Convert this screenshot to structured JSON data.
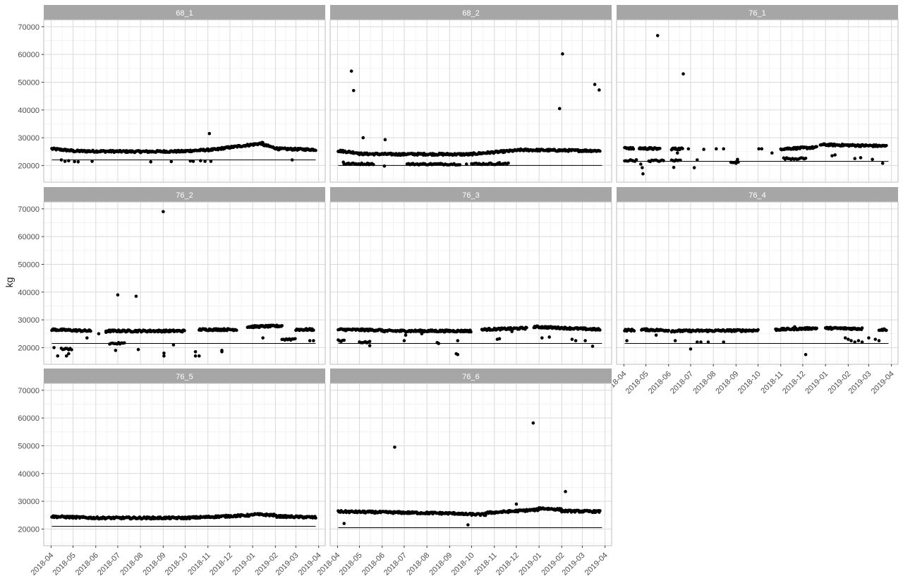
{
  "chart_data": {
    "type": "scatter",
    "ylabel": "kg",
    "xlabel": "",
    "y_ticks": [
      20000,
      30000,
      40000,
      50000,
      60000,
      70000
    ],
    "y_tick_labels": [
      "20000",
      "30000",
      "40000",
      "50000",
      "60000",
      "70000"
    ],
    "ylim": [
      14000,
      72500
    ],
    "x_ticks": [
      "2018-04-01",
      "2018-05-01",
      "2018-06-01",
      "2018-07-01",
      "2018-08-01",
      "2018-09-01",
      "2018-10-01",
      "2018-11-01",
      "2018-12-01",
      "2019-01-01",
      "2019-02-01",
      "2019-03-01",
      "2019-04-01"
    ],
    "x_tick_labels": [
      "2018-04",
      "2018-05",
      "2018-06",
      "2018-07",
      "2018-08",
      "2018-09",
      "2018-10",
      "2018-11",
      "2018-12",
      "2019-01",
      "2019-02",
      "2019-03",
      "2019-04"
    ],
    "xlim": [
      "2018-03-22",
      "2019-04-10"
    ],
    "grid": true,
    "colors": {
      "panel_strip": "#a6a6a6",
      "strip_text": "#ffffff",
      "grid": "#d9d9d9",
      "point": "#000000",
      "reference_line": "#000000",
      "axis_text": "#4d4d4d"
    },
    "panels": [
      {
        "label": "68_1",
        "reference_line": 22000,
        "bands": [
          {
            "from": "2018-04-02",
            "to": "2018-05-01",
            "start": 26000,
            "end": 25300
          },
          {
            "from": "2018-05-01",
            "to": "2018-08-01",
            "start": 25200,
            "end": 25000
          },
          {
            "from": "2018-08-01",
            "to": "2018-10-01",
            "start": 25000,
            "end": 25100
          },
          {
            "from": "2018-10-01",
            "to": "2018-11-15",
            "start": 25200,
            "end": 25800
          },
          {
            "from": "2018-11-15",
            "to": "2019-01-15",
            "start": 26000,
            "end": 28000
          },
          {
            "from": "2019-01-15",
            "to": "2019-02-05",
            "start": 27500,
            "end": 26000
          },
          {
            "from": "2019-02-05",
            "to": "2019-03-28",
            "start": 26000,
            "end": 25700
          }
        ],
        "points": [
          [
            "2018-04-15",
            22000
          ],
          [
            "2018-04-20",
            21500
          ],
          [
            "2018-04-25",
            21700
          ],
          [
            "2018-05-03",
            21400
          ],
          [
            "2018-05-08",
            21300
          ],
          [
            "2018-05-27",
            21500
          ],
          [
            "2018-08-15",
            21300
          ],
          [
            "2018-09-12",
            21400
          ],
          [
            "2018-10-08",
            21600
          ],
          [
            "2018-10-12",
            21500
          ],
          [
            "2018-10-22",
            21700
          ],
          [
            "2018-10-28",
            21500
          ],
          [
            "2018-11-05",
            21500
          ],
          [
            "2018-11-03",
            31500
          ],
          [
            "2019-02-24",
            22000
          ]
        ]
      },
      {
        "label": "68_2",
        "reference_line": 20000,
        "bands": [
          {
            "from": "2018-04-02",
            "to": "2018-04-30",
            "start": 25300,
            "end": 24500
          },
          {
            "from": "2018-04-30",
            "to": "2018-07-01",
            "start": 24200,
            "end": 24000
          },
          {
            "from": "2018-07-01",
            "to": "2018-09-30",
            "start": 24100,
            "end": 24000
          },
          {
            "from": "2018-09-30",
            "to": "2018-12-05",
            "start": 24100,
            "end": 25500
          },
          {
            "from": "2018-12-05",
            "to": "2019-03-25",
            "start": 25600,
            "end": 25300
          }
        ],
        "lower_bands": [
          {
            "from": "2018-04-10",
            "to": "2018-05-20",
            "value": 20600
          },
          {
            "from": "2018-07-05",
            "to": "2018-09-15",
            "value": 20500
          },
          {
            "from": "2018-10-01",
            "to": "2018-11-20",
            "value": 20600
          }
        ],
        "points": [
          [
            "2018-04-20",
            54000
          ],
          [
            "2018-04-23",
            47000
          ],
          [
            "2018-05-06",
            30000
          ],
          [
            "2018-06-05",
            29300
          ],
          [
            "2018-06-04",
            19800
          ],
          [
            "2018-04-09",
            21200
          ],
          [
            "2018-05-15",
            20600
          ],
          [
            "2019-01-29",
            40500
          ],
          [
            "2019-02-02",
            60200
          ],
          [
            "2019-03-18",
            49200
          ],
          [
            "2019-03-24",
            47200
          ],
          [
            "2018-09-24",
            20500
          ],
          [
            "2018-11-08",
            21000
          ]
        ]
      },
      {
        "label": "76_1",
        "reference_line": 21500,
        "bands": [
          {
            "from": "2018-04-02",
            "to": "2018-04-14",
            "start": 26500,
            "end": 26000
          },
          {
            "from": "2018-04-22",
            "to": "2018-05-20",
            "start": 26200,
            "end": 26000
          },
          {
            "from": "2018-06-05",
            "to": "2018-06-20",
            "start": 26000,
            "end": 26000
          },
          {
            "from": "2018-11-01",
            "to": "2018-12-20",
            "start": 26000,
            "end": 26500
          },
          {
            "from": "2018-12-25",
            "to": "2019-03-25",
            "start": 27500,
            "end": 27000
          }
        ],
        "lower_bands": [
          {
            "from": "2018-04-02",
            "to": "2018-04-18",
            "value": 21800
          },
          {
            "from": "2018-05-05",
            "to": "2018-05-25",
            "value": 21700
          },
          {
            "from": "2018-06-05",
            "to": "2018-06-18",
            "value": 21800
          },
          {
            "from": "2018-08-25",
            "to": "2018-09-05",
            "value": 21300
          },
          {
            "from": "2018-11-05",
            "to": "2018-12-05",
            "value": 22500
          }
        ],
        "points": [
          [
            "2018-05-17",
            66800
          ],
          [
            "2018-06-21",
            53000
          ],
          [
            "2018-04-24",
            20500
          ],
          [
            "2018-04-26",
            19200
          ],
          [
            "2018-04-27",
            17000
          ],
          [
            "2018-06-08",
            19300
          ],
          [
            "2018-06-13",
            24500
          ],
          [
            "2018-07-06",
            19200
          ],
          [
            "2018-07-10",
            22000
          ],
          [
            "2018-08-05",
            26000
          ],
          [
            "2018-08-15",
            26000
          ],
          [
            "2018-09-01",
            20800
          ],
          [
            "2018-09-03",
            22200
          ],
          [
            "2018-10-02",
            26000
          ],
          [
            "2018-10-06",
            26000
          ],
          [
            "2018-10-20",
            24500
          ],
          [
            "2019-01-10",
            23500
          ],
          [
            "2019-01-14",
            23800
          ],
          [
            "2019-02-10",
            22500
          ],
          [
            "2019-02-18",
            22800
          ],
          [
            "2019-03-06",
            22200
          ],
          [
            "2019-03-20",
            20800
          ],
          [
            "2018-06-28",
            26000
          ],
          [
            "2018-07-19",
            25800
          ]
        ]
      },
      {
        "label": "76_2",
        "reference_line": 21500,
        "bands": [
          {
            "from": "2018-04-02",
            "to": "2018-05-25",
            "start": 26500,
            "end": 26000
          },
          {
            "from": "2018-06-15",
            "to": "2018-09-30",
            "start": 26000,
            "end": 26000
          },
          {
            "from": "2018-10-20",
            "to": "2018-12-10",
            "start": 26500,
            "end": 26500
          },
          {
            "from": "2018-12-25",
            "to": "2019-02-10",
            "start": 27500,
            "end": 27800
          },
          {
            "from": "2019-03-01",
            "to": "2019-03-25",
            "start": 26500,
            "end": 26500
          }
        ],
        "lower_bands": [
          {
            "from": "2018-04-15",
            "to": "2018-04-30",
            "value": 19500
          },
          {
            "from": "2018-06-20",
            "to": "2018-07-10",
            "value": 21500
          },
          {
            "from": "2019-02-10",
            "to": "2019-02-28",
            "value": 23000
          }
        ],
        "points": [
          [
            "2018-09-01",
            69000
          ],
          [
            "2018-07-01",
            39000
          ],
          [
            "2018-07-26",
            38500
          ],
          [
            "2018-04-10",
            17000
          ],
          [
            "2018-04-22",
            17000
          ],
          [
            "2018-04-25",
            17800
          ],
          [
            "2018-04-05",
            20000
          ],
          [
            "2018-06-28",
            19000
          ],
          [
            "2018-07-29",
            19300
          ],
          [
            "2018-09-02",
            17000
          ],
          [
            "2018-09-02",
            18000
          ],
          [
            "2018-09-15",
            21000
          ],
          [
            "2018-10-15",
            17000
          ],
          [
            "2018-10-15",
            18500
          ],
          [
            "2018-10-20",
            17000
          ],
          [
            "2018-11-20",
            18500
          ],
          [
            "2018-11-20",
            19000
          ],
          [
            "2019-03-20",
            22500
          ],
          [
            "2019-03-25",
            22500
          ],
          [
            "2019-01-15",
            23500
          ],
          [
            "2018-05-20",
            23500
          ],
          [
            "2018-06-05",
            25000
          ],
          [
            "2018-06-15",
            25500
          ]
        ]
      },
      {
        "label": "76_3",
        "reference_line": 21500,
        "bands": [
          {
            "from": "2018-04-02",
            "to": "2018-06-01",
            "start": 26500,
            "end": 26300
          },
          {
            "from": "2018-06-01",
            "to": "2018-09-30",
            "start": 26000,
            "end": 26000
          },
          {
            "from": "2018-10-15",
            "to": "2018-12-15",
            "start": 26500,
            "end": 27000
          },
          {
            "from": "2018-12-25",
            "to": "2019-03-25",
            "start": 27500,
            "end": 26500
          }
        ],
        "lower_bands": [
          {
            "from": "2018-04-02",
            "to": "2018-04-10",
            "value": 22500
          },
          {
            "from": "2018-05-01",
            "to": "2018-05-15",
            "value": 22000
          }
        ],
        "points": [
          [
            "2018-05-15",
            20700
          ],
          [
            "2018-07-01",
            22500
          ],
          [
            "2018-07-03",
            24500
          ],
          [
            "2018-08-15",
            21800
          ],
          [
            "2018-08-17",
            21500
          ],
          [
            "2018-09-10",
            17800
          ],
          [
            "2018-09-12",
            17500
          ],
          [
            "2018-09-12",
            22500
          ],
          [
            "2018-11-05",
            23000
          ],
          [
            "2018-11-08",
            23200
          ],
          [
            "2019-01-05",
            23500
          ],
          [
            "2019-01-15",
            23800
          ],
          [
            "2019-02-15",
            23000
          ],
          [
            "2019-02-20",
            22500
          ],
          [
            "2019-03-05",
            22500
          ],
          [
            "2019-03-15",
            20500
          ],
          [
            "2018-07-25",
            25000
          ],
          [
            "2018-11-25",
            25800
          ]
        ]
      },
      {
        "label": "76_4",
        "reference_line": 21500,
        "bands": [
          {
            "from": "2018-04-02",
            "to": "2018-04-15",
            "start": 26300,
            "end": 26300
          },
          {
            "from": "2018-04-25",
            "to": "2018-06-01",
            "start": 26500,
            "end": 26200
          },
          {
            "from": "2018-06-05",
            "to": "2018-10-01",
            "start": 26000,
            "end": 26200
          },
          {
            "from": "2018-10-25",
            "to": "2018-12-20",
            "start": 26500,
            "end": 27000
          },
          {
            "from": "2019-01-01",
            "to": "2019-02-20",
            "start": 27000,
            "end": 26800
          },
          {
            "from": "2019-03-15",
            "to": "2019-03-25",
            "start": 26500,
            "end": 26500
          }
        ],
        "points": [
          [
            "2018-04-05",
            22500
          ],
          [
            "2018-05-15",
            24500
          ],
          [
            "2018-06-10",
            22500
          ],
          [
            "2018-07-01",
            19500
          ],
          [
            "2018-07-10",
            22000
          ],
          [
            "2018-07-15",
            22000
          ],
          [
            "2018-07-25",
            22000
          ],
          [
            "2018-08-15",
            22000
          ],
          [
            "2018-12-05",
            17500
          ],
          [
            "2019-01-28",
            23500
          ],
          [
            "2019-02-01",
            23000
          ],
          [
            "2019-02-05",
            22500
          ],
          [
            "2019-02-10",
            22000
          ],
          [
            "2019-02-15",
            22500
          ],
          [
            "2019-02-20",
            22000
          ],
          [
            "2019-03-01",
            23500
          ],
          [
            "2019-03-10",
            23000
          ],
          [
            "2019-03-15",
            22500
          ],
          [
            "2018-11-20",
            27500
          ]
        ]
      },
      {
        "label": "76_5",
        "reference_line": 21000,
        "bands": [
          {
            "from": "2018-04-02",
            "to": "2018-06-01",
            "start": 24500,
            "end": 24000
          },
          {
            "from": "2018-06-01",
            "to": "2018-10-01",
            "start": 24000,
            "end": 24000
          },
          {
            "from": "2018-10-01",
            "to": "2019-01-01",
            "start": 24000,
            "end": 25000
          },
          {
            "from": "2019-01-01",
            "to": "2019-02-01",
            "start": 25300,
            "end": 25000
          },
          {
            "from": "2019-02-01",
            "to": "2019-03-28",
            "start": 24600,
            "end": 24200
          }
        ],
        "points": []
      },
      {
        "label": "76_6",
        "reference_line": 20500,
        "bands": [
          {
            "from": "2018-04-02",
            "to": "2018-09-15",
            "start": 26300,
            "end": 25600
          },
          {
            "from": "2018-09-15",
            "to": "2018-10-20",
            "start": 25400,
            "end": 25200
          },
          {
            "from": "2018-10-20",
            "to": "2019-01-01",
            "start": 25800,
            "end": 27000
          },
          {
            "from": "2019-01-01",
            "to": "2019-02-01",
            "start": 27500,
            "end": 27000
          },
          {
            "from": "2019-02-01",
            "to": "2019-03-25",
            "start": 26500,
            "end": 26300
          }
        ],
        "points": [
          [
            "2018-04-10",
            22000
          ],
          [
            "2018-06-18",
            49500
          ],
          [
            "2018-09-26",
            21500
          ],
          [
            "2018-12-01",
            29000
          ],
          [
            "2018-12-24",
            58200
          ],
          [
            "2019-02-06",
            33500
          ]
        ]
      }
    ]
  }
}
